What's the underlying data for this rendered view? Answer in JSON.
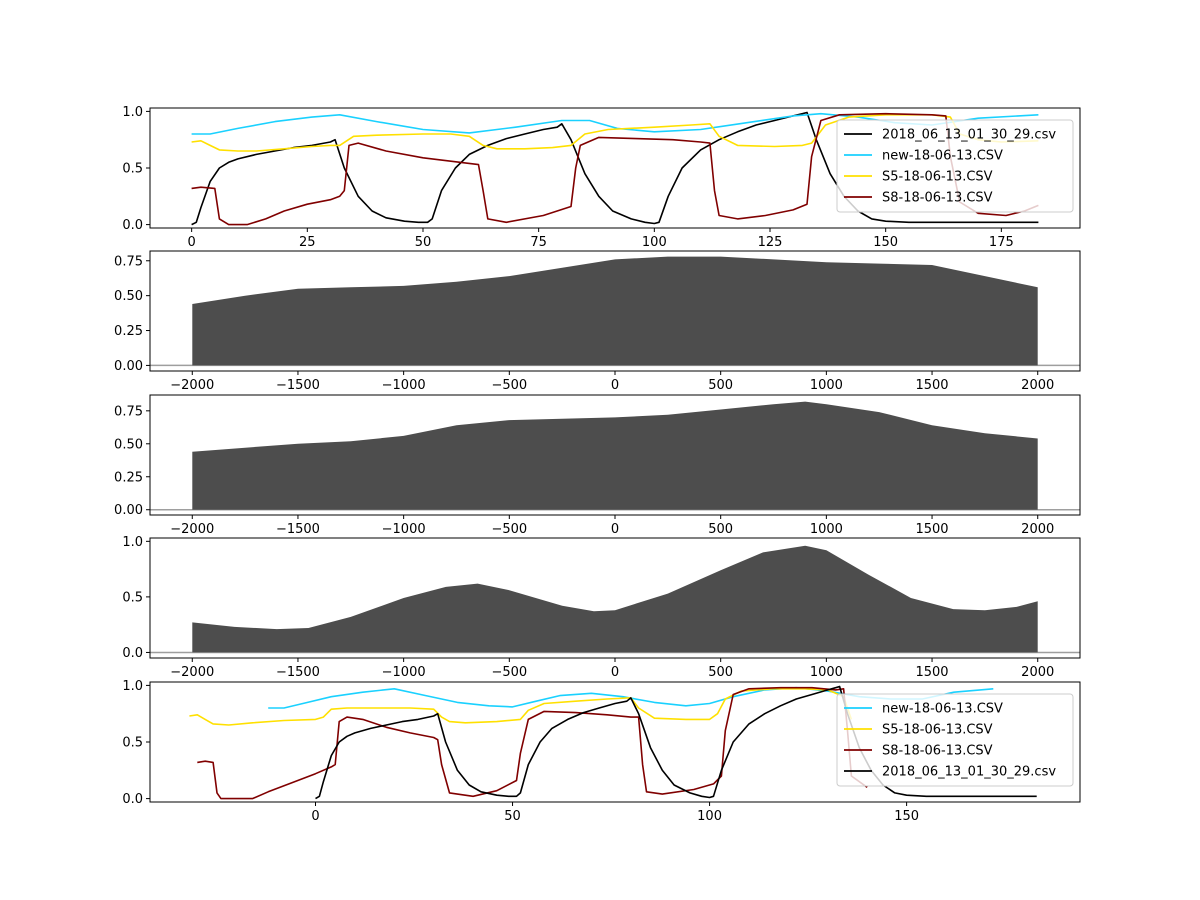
{
  "chart_data": [
    {
      "type": "line",
      "xlim": [
        -9,
        192
      ],
      "ylim": [
        -0.03,
        1.03
      ],
      "xticks": [
        0,
        25,
        50,
        75,
        100,
        125,
        150,
        175
      ],
      "yticks": [
        0.0,
        0.5,
        1.0
      ],
      "legend": "right",
      "series": [
        {
          "name": "2018_06_13_01_30_29.csv",
          "color": "#000000",
          "x": [
            0,
            1,
            2,
            4,
            6,
            8,
            10,
            14,
            18,
            22,
            26,
            30,
            31,
            33,
            36,
            39,
            42,
            46,
            49,
            51,
            52,
            54,
            57,
            60,
            64,
            68,
            72,
            76,
            79,
            80,
            82,
            85,
            88,
            91,
            95,
            98,
            100,
            101,
            103,
            106,
            110,
            114,
            118,
            122,
            126,
            130,
            132,
            133,
            135,
            138,
            141,
            144,
            147,
            150,
            155,
            170,
            183
          ],
          "y": [
            0.0,
            0.02,
            0.15,
            0.38,
            0.5,
            0.55,
            0.58,
            0.62,
            0.65,
            0.68,
            0.7,
            0.73,
            0.75,
            0.5,
            0.25,
            0.12,
            0.06,
            0.03,
            0.02,
            0.02,
            0.05,
            0.3,
            0.5,
            0.62,
            0.7,
            0.76,
            0.8,
            0.84,
            0.86,
            0.89,
            0.75,
            0.45,
            0.25,
            0.12,
            0.05,
            0.02,
            0.01,
            0.02,
            0.25,
            0.5,
            0.66,
            0.75,
            0.82,
            0.88,
            0.92,
            0.96,
            0.98,
            0.99,
            0.75,
            0.45,
            0.25,
            0.12,
            0.05,
            0.03,
            0.02,
            0.02,
            0.02
          ]
        },
        {
          "name": "new-18-06-13.CSV",
          "color": "#1ad1ff",
          "x": [
            0,
            4,
            10,
            18,
            26,
            32,
            40,
            50,
            60,
            70,
            80,
            86,
            92,
            100,
            110,
            120,
            130,
            136,
            144,
            152,
            160,
            170,
            183
          ],
          "y": [
            0.8,
            0.8,
            0.85,
            0.91,
            0.95,
            0.97,
            0.91,
            0.84,
            0.81,
            0.86,
            0.92,
            0.92,
            0.85,
            0.82,
            0.84,
            0.9,
            0.96,
            0.98,
            0.95,
            0.9,
            0.88,
            0.94,
            0.97
          ]
        },
        {
          "name": "S5-18-06-13.CSV",
          "color": "#ffe000",
          "x": [
            0,
            2,
            4,
            6,
            10,
            14,
            20,
            26,
            30,
            32,
            35,
            40,
            50,
            56,
            60,
            63,
            66,
            72,
            78,
            82,
            85,
            90,
            100,
            108,
            112,
            114,
            118,
            126,
            132,
            134,
            137,
            142,
            150,
            160,
            164,
            166,
            170,
            175,
            183
          ],
          "y": [
            0.73,
            0.74,
            0.7,
            0.66,
            0.65,
            0.65,
            0.67,
            0.69,
            0.7,
            0.7,
            0.78,
            0.79,
            0.8,
            0.8,
            0.78,
            0.7,
            0.67,
            0.67,
            0.68,
            0.7,
            0.8,
            0.84,
            0.86,
            0.88,
            0.89,
            0.78,
            0.7,
            0.69,
            0.7,
            0.72,
            0.88,
            0.95,
            0.97,
            0.97,
            0.95,
            0.8,
            0.75,
            0.73,
            0.74
          ]
        },
        {
          "name": "S8-18-06-13.CSV",
          "color": "#800000",
          "x": [
            0,
            2,
            5,
            6,
            8,
            10,
            12,
            16,
            20,
            25,
            30,
            32,
            33,
            34,
            36,
            42,
            50,
            58,
            62,
            63,
            64,
            68,
            76,
            82,
            83,
            84,
            88,
            96,
            104,
            110,
            112,
            113,
            114,
            118,
            124,
            130,
            133,
            134,
            136,
            140,
            150,
            160,
            163,
            164,
            166,
            170,
            176,
            180,
            183
          ],
          "y": [
            0.32,
            0.33,
            0.32,
            0.05,
            0.0,
            0.0,
            0.0,
            0.05,
            0.12,
            0.18,
            0.22,
            0.25,
            0.3,
            0.7,
            0.72,
            0.65,
            0.59,
            0.55,
            0.53,
            0.3,
            0.05,
            0.02,
            0.08,
            0.16,
            0.5,
            0.7,
            0.77,
            0.76,
            0.75,
            0.73,
            0.72,
            0.3,
            0.08,
            0.05,
            0.08,
            0.13,
            0.18,
            0.6,
            0.92,
            0.97,
            0.98,
            0.97,
            0.96,
            0.6,
            0.2,
            0.1,
            0.08,
            0.12,
            0.17
          ]
        }
      ]
    },
    {
      "type": "area",
      "xlim": [
        -2200,
        2200
      ],
      "ylim": [
        -0.04,
        0.82
      ],
      "xticks": [
        -2000,
        -1500,
        -1000,
        -500,
        0,
        500,
        1000,
        1500,
        2000
      ],
      "yticks": [
        0.0,
        0.25,
        0.5,
        0.75
      ],
      "baseline_color": "#9e9e9e",
      "fill_color": "#4d4d4d",
      "x": [
        -2000,
        -1750,
        -1500,
        -1250,
        -1000,
        -750,
        -500,
        -250,
        0,
        250,
        500,
        750,
        1000,
        1250,
        1500,
        1750,
        2000
      ],
      "y": [
        0.44,
        0.5,
        0.55,
        0.56,
        0.57,
        0.6,
        0.64,
        0.7,
        0.76,
        0.78,
        0.78,
        0.76,
        0.74,
        0.73,
        0.72,
        0.64,
        0.56
      ]
    },
    {
      "type": "area",
      "xlim": [
        -2200,
        2200
      ],
      "ylim": [
        -0.04,
        0.87
      ],
      "xticks": [
        -2000,
        -1500,
        -1000,
        -500,
        0,
        500,
        1000,
        1500,
        2000
      ],
      "yticks": [
        0.0,
        0.25,
        0.5,
        0.75
      ],
      "baseline_color": "#9e9e9e",
      "fill_color": "#4d4d4d",
      "x": [
        -2000,
        -1750,
        -1500,
        -1250,
        -1000,
        -750,
        -500,
        -250,
        0,
        250,
        500,
        750,
        900,
        1000,
        1250,
        1500,
        1750,
        2000
      ],
      "y": [
        0.44,
        0.47,
        0.5,
        0.52,
        0.56,
        0.64,
        0.68,
        0.69,
        0.7,
        0.72,
        0.76,
        0.8,
        0.82,
        0.8,
        0.74,
        0.64,
        0.58,
        0.54
      ]
    },
    {
      "type": "area",
      "xlim": [
        -2200,
        2200
      ],
      "ylim": [
        -0.05,
        1.03
      ],
      "xticks": [
        -2000,
        -1500,
        -1000,
        -500,
        0,
        500,
        1000,
        1500,
        2000
      ],
      "yticks": [
        0.0,
        0.5,
        1.0
      ],
      "baseline_color": "#9e9e9e",
      "fill_color": "#4d4d4d",
      "x": [
        -2000,
        -1800,
        -1600,
        -1450,
        -1250,
        -1000,
        -800,
        -650,
        -500,
        -250,
        -100,
        0,
        250,
        500,
        700,
        900,
        1000,
        1200,
        1400,
        1600,
        1750,
        1900,
        2000
      ],
      "y": [
        0.27,
        0.23,
        0.21,
        0.22,
        0.32,
        0.49,
        0.59,
        0.62,
        0.56,
        0.42,
        0.37,
        0.38,
        0.53,
        0.74,
        0.9,
        0.96,
        0.92,
        0.7,
        0.49,
        0.39,
        0.38,
        0.41,
        0.46
      ]
    },
    {
      "type": "line",
      "xlim": [
        -42,
        194
      ],
      "ylim": [
        -0.03,
        1.03
      ],
      "xticks": [
        0,
        50,
        100,
        150
      ],
      "yticks": [
        0.0,
        0.5,
        1.0
      ],
      "legend": "right",
      "series": [
        {
          "name": "new-18-06-13.CSV",
          "color": "#1ad1ff",
          "x": [
            -12,
            -8,
            -2,
            4,
            12,
            20,
            28,
            36,
            44,
            50,
            56,
            62,
            70,
            78,
            86,
            94,
            100,
            106,
            114,
            122,
            130,
            138,
            146,
            154,
            162,
            172
          ],
          "y": [
            0.8,
            0.8,
            0.85,
            0.9,
            0.94,
            0.97,
            0.91,
            0.85,
            0.82,
            0.81,
            0.86,
            0.91,
            0.93,
            0.9,
            0.85,
            0.82,
            0.84,
            0.9,
            0.96,
            0.98,
            0.95,
            0.9,
            0.88,
            0.88,
            0.94,
            0.97
          ]
        },
        {
          "name": "S5-18-06-13.CSV",
          "color": "#ffe000",
          "x": [
            -32,
            -30,
            -28,
            -26,
            -22,
            -16,
            -8,
            0,
            2,
            4,
            8,
            16,
            24,
            30,
            32,
            34,
            38,
            46,
            52,
            54,
            58,
            66,
            74,
            80,
            82,
            86,
            94,
            100,
            102,
            104,
            108,
            116,
            124,
            130,
            134,
            136
          ],
          "y": [
            0.73,
            0.74,
            0.7,
            0.66,
            0.65,
            0.67,
            0.69,
            0.7,
            0.72,
            0.79,
            0.8,
            0.8,
            0.8,
            0.79,
            0.72,
            0.68,
            0.67,
            0.68,
            0.7,
            0.78,
            0.84,
            0.86,
            0.88,
            0.89,
            0.8,
            0.71,
            0.7,
            0.7,
            0.75,
            0.88,
            0.95,
            0.97,
            0.97,
            0.96,
            0.9,
            0.7
          ]
        },
        {
          "name": "S8-18-06-13.CSV",
          "color": "#800000",
          "x": [
            -30,
            -28,
            -26,
            -25,
            -24,
            -20,
            -16,
            -12,
            -6,
            0,
            4,
            5,
            6,
            8,
            12,
            18,
            24,
            30,
            31,
            32,
            34,
            40,
            46,
            51,
            52,
            54,
            58,
            66,
            74,
            80,
            82,
            83,
            84,
            88,
            96,
            101,
            103,
            104,
            106,
            110,
            118,
            126,
            132,
            134,
            135,
            136,
            140
          ],
          "y": [
            0.32,
            0.33,
            0.32,
            0.05,
            0.0,
            0.0,
            0.0,
            0.06,
            0.14,
            0.22,
            0.28,
            0.3,
            0.68,
            0.72,
            0.7,
            0.63,
            0.58,
            0.54,
            0.52,
            0.3,
            0.05,
            0.02,
            0.07,
            0.16,
            0.4,
            0.7,
            0.77,
            0.76,
            0.74,
            0.72,
            0.72,
            0.3,
            0.06,
            0.04,
            0.08,
            0.13,
            0.2,
            0.6,
            0.92,
            0.97,
            0.98,
            0.98,
            0.96,
            0.97,
            0.6,
            0.2,
            0.1
          ]
        },
        {
          "name": "2018_06_13_01_30_29.csv",
          "color": "#000000",
          "x": [
            0,
            1,
            2,
            4,
            6,
            8,
            10,
            14,
            18,
            22,
            26,
            30,
            31,
            33,
            36,
            39,
            42,
            46,
            49,
            51,
            52,
            54,
            57,
            60,
            64,
            68,
            72,
            76,
            79,
            80,
            82,
            85,
            88,
            91,
            95,
            98,
            100,
            101,
            103,
            106,
            110,
            114,
            118,
            122,
            126,
            130,
            132,
            133,
            135,
            138,
            141,
            144,
            147,
            150,
            155,
            170,
            183
          ],
          "y": [
            0.0,
            0.02,
            0.15,
            0.38,
            0.5,
            0.55,
            0.58,
            0.62,
            0.65,
            0.68,
            0.7,
            0.73,
            0.75,
            0.5,
            0.25,
            0.12,
            0.06,
            0.03,
            0.02,
            0.02,
            0.05,
            0.3,
            0.5,
            0.62,
            0.7,
            0.76,
            0.8,
            0.84,
            0.86,
            0.89,
            0.75,
            0.45,
            0.25,
            0.12,
            0.05,
            0.02,
            0.01,
            0.02,
            0.25,
            0.5,
            0.66,
            0.75,
            0.82,
            0.88,
            0.92,
            0.96,
            0.98,
            0.99,
            0.75,
            0.45,
            0.25,
            0.12,
            0.05,
            0.03,
            0.02,
            0.02,
            0.02
          ]
        }
      ]
    }
  ]
}
